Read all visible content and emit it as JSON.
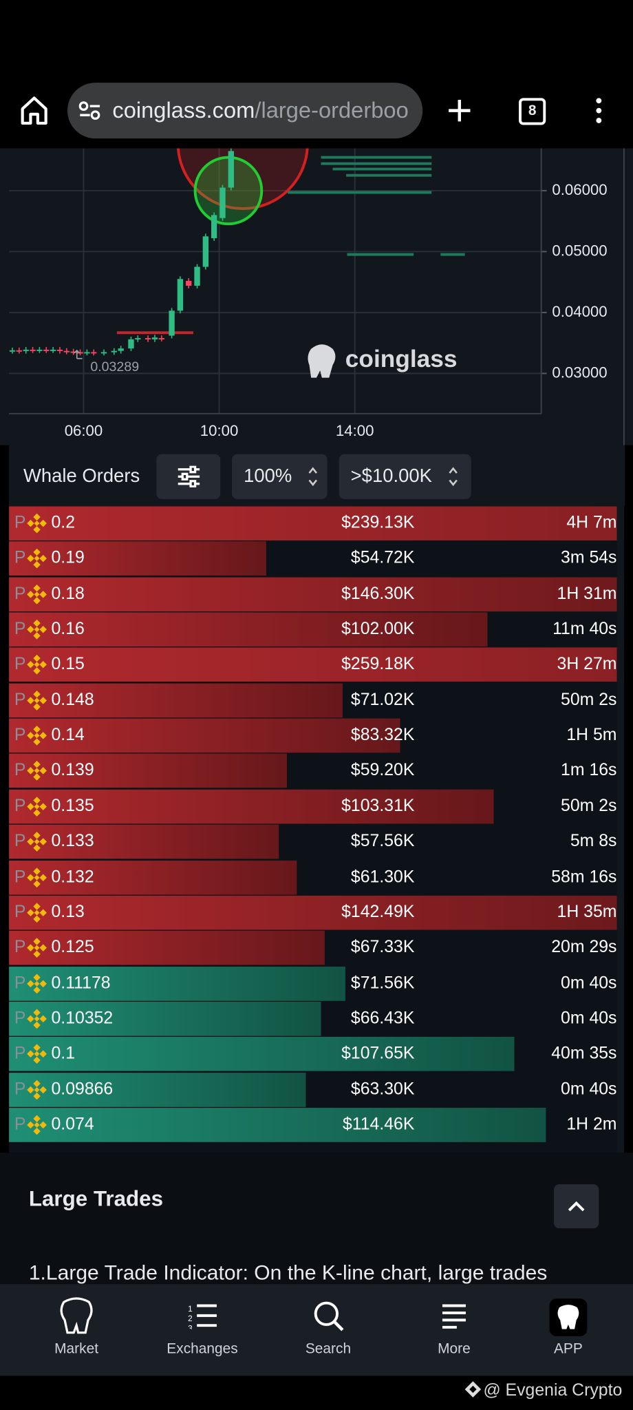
{
  "browser": {
    "url_host": "coinglass.com",
    "url_path": "/large-orderboo",
    "tab_count": 8
  },
  "price_chart": {
    "ylim": [
      0.0234,
      0.0665
    ],
    "xlim": [
      3.8,
      19.5
    ],
    "yticks": [
      {
        "value": 0.06,
        "label": "0.06000"
      },
      {
        "value": 0.05,
        "label": "0.05000"
      },
      {
        "value": 0.04,
        "label": "0.04000"
      },
      {
        "value": 0.03,
        "label": "0.03000"
      }
    ],
    "xticks": [
      {
        "value": 6,
        "label": "06:00"
      },
      {
        "value": 10,
        "label": "10:00"
      },
      {
        "value": 14,
        "label": "14:00"
      }
    ],
    "up_color": "#2ebd85",
    "down_color": "#f6465d",
    "candles": [
      [
        3.9,
        0.0337,
        0.0338
      ],
      [
        4.1,
        0.0338,
        0.0337
      ],
      [
        4.3,
        0.0337,
        0.0339
      ],
      [
        4.5,
        0.0339,
        0.0338
      ],
      [
        4.7,
        0.0338,
        0.0339
      ],
      [
        4.9,
        0.0339,
        0.0338
      ],
      [
        5.1,
        0.0338,
        0.0339
      ],
      [
        5.3,
        0.0339,
        0.0337
      ],
      [
        5.5,
        0.0337,
        0.0336
      ],
      [
        5.7,
        0.0336,
        0.0335
      ],
      [
        5.9,
        0.0335,
        0.0334
      ],
      [
        6.1,
        0.0334,
        0.0335
      ],
      [
        6.3,
        0.0335,
        0.0334
      ],
      [
        6.6,
        0.0334,
        0.0335
      ],
      [
        6.9,
        0.0335,
        0.0337
      ],
      [
        7.1,
        0.0337,
        0.0341
      ],
      [
        7.4,
        0.0341,
        0.0356
      ],
      [
        7.6,
        0.0356,
        0.0358
      ],
      [
        7.9,
        0.0358,
        0.0356
      ],
      [
        8.1,
        0.0356,
        0.0359
      ],
      [
        8.3,
        0.0358,
        0.0357
      ],
      [
        8.6,
        0.0362,
        0.0403
      ],
      [
        8.85,
        0.0403,
        0.0455
      ],
      [
        9.1,
        0.0452,
        0.0444
      ],
      [
        9.35,
        0.0444,
        0.0475
      ],
      [
        9.6,
        0.0475,
        0.0525
      ],
      [
        9.85,
        0.0522,
        0.056
      ],
      [
        10.1,
        0.0555,
        0.0605
      ],
      [
        10.35,
        0.0605,
        0.0665
      ]
    ],
    "low_marker": {
      "x": 6.2,
      "value": 0.03289,
      "label": "0.03289"
    },
    "watermark": "coinglass"
  },
  "whale_orders": {
    "title": "Whale Orders",
    "percent": "100%",
    "min_size": ">$10.00K",
    "side_marker": "P",
    "orders": [
      {
        "price": "0.2",
        "value": 239.13,
        "value_label": "$239.13K",
        "age": "4H 7m",
        "color": "#b0292e"
      },
      {
        "price": "0.19",
        "value": 54.72,
        "value_label": "$54.72K",
        "age": "3m 54s",
        "color": "#b0292e"
      },
      {
        "price": "0.18",
        "value": 146.3,
        "value_label": "$146.30K",
        "age": "1H 31m",
        "color": "#b0292e"
      },
      {
        "price": "0.16",
        "value": 102.0,
        "value_label": "$102.00K",
        "age": "11m 40s",
        "color": "#b0292e"
      },
      {
        "price": "0.15",
        "value": 259.18,
        "value_label": "$259.18K",
        "age": "3H 27m",
        "color": "#b0292e"
      },
      {
        "price": "0.148",
        "value": 71.02,
        "value_label": "$71.02K",
        "age": "50m 2s",
        "color": "#b0292e"
      },
      {
        "price": "0.14",
        "value": 83.32,
        "value_label": "$83.32K",
        "age": "1H 5m",
        "color": "#b0292e"
      },
      {
        "price": "0.139",
        "value": 59.2,
        "value_label": "$59.20K",
        "age": "1m 16s",
        "color": "#b0292e"
      },
      {
        "price": "0.135",
        "value": 103.31,
        "value_label": "$103.31K",
        "age": "50m 2s",
        "color": "#b0292e"
      },
      {
        "price": "0.133",
        "value": 57.56,
        "value_label": "$57.56K",
        "age": "5m 8s",
        "color": "#b0292e"
      },
      {
        "price": "0.132",
        "value": 61.3,
        "value_label": "$61.30K",
        "age": "58m 16s",
        "color": "#b0292e"
      },
      {
        "price": "0.13",
        "value": 142.49,
        "value_label": "$142.49K",
        "age": "1H 35m",
        "color": "#b0292e"
      },
      {
        "price": "0.125",
        "value": 67.33,
        "value_label": "$67.33K",
        "age": "20m 29s",
        "color": "#b0292e"
      },
      {
        "price": "0.11178",
        "value": 71.56,
        "value_label": "$71.56K",
        "age": "0m 40s",
        "color": "#1f8f74"
      },
      {
        "price": "0.10352",
        "value": 66.43,
        "value_label": "$66.43K",
        "age": "0m 40s",
        "color": "#1f8f74"
      },
      {
        "price": "0.1",
        "value": 107.65,
        "value_label": "$107.65K",
        "age": "40m 35s",
        "color": "#1f8f74"
      },
      {
        "price": "0.09866",
        "value": 63.3,
        "value_label": "$63.30K",
        "age": "0m 40s",
        "color": "#1f8f74"
      },
      {
        "price": "0.074",
        "value": 114.46,
        "value_label": "$114.46K",
        "age": "1H 2m",
        "color": "#1f8f74"
      }
    ]
  },
  "section": {
    "title": "Large Trades",
    "text": "1.Large Trade Indicator: On the K-line chart, large trades"
  },
  "nav": [
    "Market",
    "Exchanges",
    "Search",
    "More",
    "APP"
  ],
  "credit": "@ Evgenia Crypto"
}
